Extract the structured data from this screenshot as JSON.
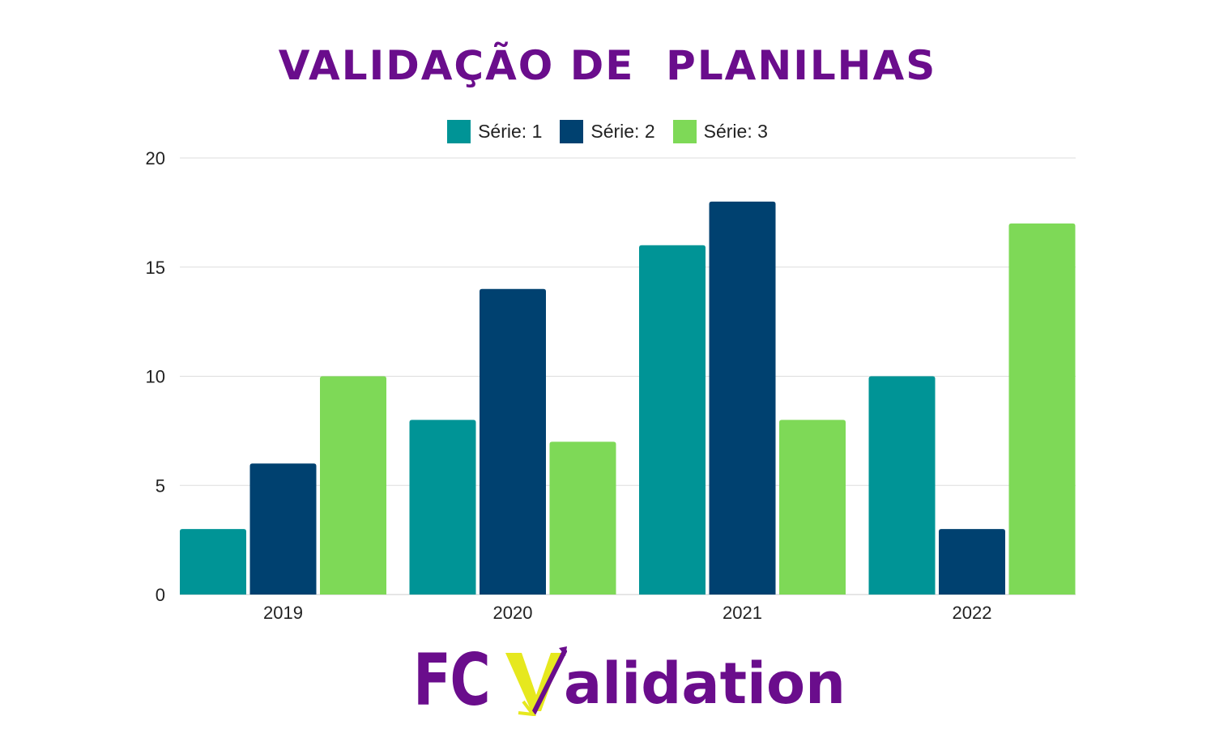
{
  "chart_data": {
    "type": "bar",
    "title": "VALIDAÇÃO DE  PLANILHAS",
    "categories": [
      "2019",
      "2020",
      "2021",
      "2022"
    ],
    "series": [
      {
        "name": "Série: 1",
        "values": [
          3,
          8,
          16,
          10
        ],
        "color": "#009496"
      },
      {
        "name": "Série: 2",
        "values": [
          6,
          14,
          18,
          3
        ],
        "color": "#004170"
      },
      {
        "name": "Série: 3",
        "values": [
          10,
          7,
          8,
          17
        ],
        "color": "#7ed957"
      }
    ],
    "yticks": [
      "0",
      "5",
      "10",
      "15",
      "20"
    ],
    "ylim": [
      0,
      20
    ],
    "grid": true,
    "legend": "top-center",
    "xlabel": "",
    "ylabel": ""
  },
  "logo": {
    "text_prefix": "FC",
    "text_v": "V",
    "text_suffix": "alidation",
    "colors": {
      "purple": "#6a0d8c",
      "yellow": "#e6e81e"
    }
  }
}
